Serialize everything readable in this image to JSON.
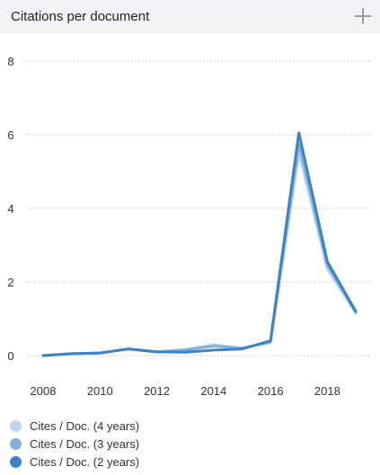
{
  "header": {
    "title": "Citations per document",
    "expand_icon": "plus-icon"
  },
  "chart_data": {
    "type": "line",
    "title": "Citations per document",
    "x": [
      2008,
      2009,
      2010,
      2011,
      2012,
      2013,
      2014,
      2015,
      2016,
      2017,
      2018,
      2019
    ],
    "xticks": [
      "2008",
      "2010",
      "2012",
      "2014",
      "2016",
      "2018"
    ],
    "yticks": [
      "0",
      "2",
      "4",
      "6",
      "8"
    ],
    "ylim": [
      0,
      8
    ],
    "xlim": [
      2008,
      2019
    ],
    "grid": "horizontal dotted",
    "legend_position": "bottom-left",
    "series": [
      {
        "name": "Cites / Doc. (4 years)",
        "color": "#bdd7ee",
        "values": [
          0,
          0.05,
          0.07,
          0.18,
          0.1,
          0.17,
          0.3,
          0.2,
          0.35,
          5.5,
          2.35,
          1.15
        ]
      },
      {
        "name": "Cites / Doc. (3 years)",
        "color": "#7fb2e0",
        "values": [
          0,
          0.05,
          0.07,
          0.18,
          0.1,
          0.15,
          0.26,
          0.2,
          0.37,
          5.75,
          2.45,
          1.18
        ]
      },
      {
        "name": "Cites / Doc. (2 years)",
        "color": "#3d82c4",
        "values": [
          0,
          0.05,
          0.07,
          0.18,
          0.1,
          0.09,
          0.15,
          0.18,
          0.4,
          6.05,
          2.55,
          1.2
        ]
      }
    ]
  }
}
